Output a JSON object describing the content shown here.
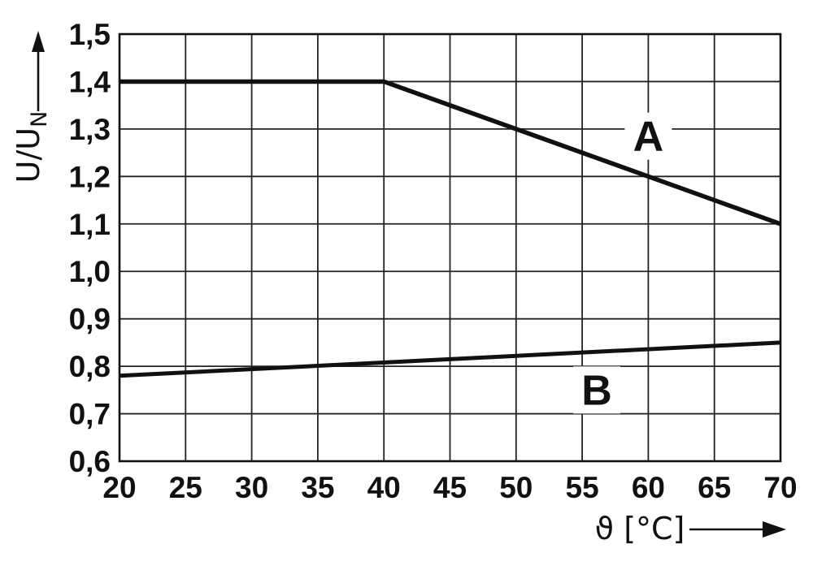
{
  "chart_data": {
    "type": "line",
    "title": "",
    "xlabel": "ϑ [°C]",
    "ylabel": {
      "main": "U/U",
      "sub": "N"
    },
    "xlim": [
      20,
      70
    ],
    "ylim": [
      0.6,
      1.5
    ],
    "grid": true,
    "legend_position": "inline-labels",
    "decimal_separator": ",",
    "x_ticks": {
      "values": [
        20,
        25,
        30,
        35,
        40,
        45,
        50,
        55,
        60,
        65,
        70
      ],
      "labels": [
        "20",
        "25",
        "30",
        "35",
        "40",
        "45",
        "50",
        "55",
        "60",
        "65",
        "70"
      ]
    },
    "y_ticks": {
      "values": [
        1.5,
        1.4,
        1.3,
        1.2,
        1.1,
        1.0,
        0.9,
        0.8,
        0.7,
        0.6
      ],
      "labels": [
        "1,5",
        "1,4",
        "1,3",
        "1,2",
        "1,1",
        "1,0",
        "0,9",
        "0,8",
        "0,7",
        "0,6"
      ]
    },
    "series": [
      {
        "name": "A",
        "label": "A",
        "points": [
          [
            20,
            1.4
          ],
          [
            40,
            1.4
          ],
          [
            70,
            1.1
          ]
        ],
        "label_at": [
          60,
          1.285
        ],
        "color": "#111111"
      },
      {
        "name": "B",
        "label": "B",
        "points": [
          [
            20,
            0.78
          ],
          [
            70,
            0.85
          ]
        ],
        "label_at": [
          56.1,
          0.75
        ],
        "color": "#111111"
      }
    ],
    "colors": {
      "foreground": "#111111",
      "grid": "#222222",
      "background": "#ffffff",
      "label_box": "#ffffff"
    }
  }
}
